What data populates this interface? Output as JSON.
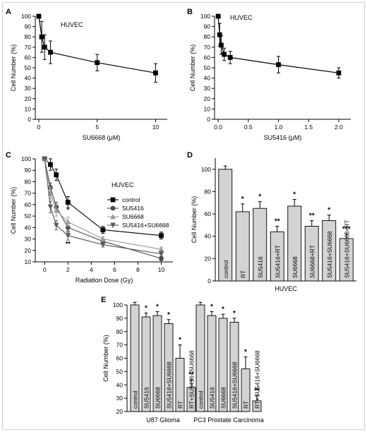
{
  "chart_data": [
    {
      "panel": "A",
      "type": "line",
      "annotation": "HUVEC",
      "xlabel": "SU6668 (μM)",
      "ylabel": "Cell Number (%)",
      "xlim": [
        -0.3,
        11
      ],
      "ylim": [
        0,
        100
      ],
      "xticks": [
        0,
        5,
        10
      ],
      "yticks": [
        0,
        10,
        20,
        30,
        40,
        50,
        60,
        70,
        80,
        90,
        100
      ],
      "x": [
        0,
        0.25,
        0.5,
        1,
        5,
        10
      ],
      "y": [
        100,
        80,
        70,
        65,
        55,
        45
      ],
      "err": [
        0,
        15,
        12,
        11,
        8,
        9
      ]
    },
    {
      "panel": "B",
      "type": "line",
      "annotation": "HUVEC",
      "xlabel": "SU5416 (μM)",
      "ylabel": "Cell Number (%)",
      "xlim": [
        -0.06,
        2.2
      ],
      "ylim": [
        0,
        100
      ],
      "xticks": [
        0,
        0.5,
        1,
        1.5,
        2
      ],
      "xticklabels": [
        "0.0",
        "0.5",
        "1.0",
        "1.5",
        "2.0"
      ],
      "yticks": [
        0,
        10,
        20,
        30,
        40,
        50,
        60,
        70,
        80,
        90,
        100
      ],
      "x": [
        0,
        0.025,
        0.05,
        0.1,
        0.2,
        1,
        2
      ],
      "y": [
        100,
        82,
        72,
        63,
        60,
        53,
        45
      ],
      "err": [
        0,
        11,
        9,
        6,
        6,
        8,
        5
      ]
    },
    {
      "panel": "C",
      "type": "line",
      "annotation": "HUVEC",
      "xlabel": "Radiation Dose (Gy)",
      "ylabel": "Cell Number (%)",
      "xlim": [
        -0.8,
        11
      ],
      "ylim": [
        10,
        100
      ],
      "xticks": [
        0,
        2,
        4,
        6,
        8,
        10
      ],
      "yticks": [
        10,
        20,
        30,
        40,
        50,
        60,
        70,
        80,
        90,
        100
      ],
      "x": [
        0,
        0.5,
        1,
        2,
        5,
        10
      ],
      "series": [
        {
          "name": "control",
          "values": [
            100,
            95,
            86,
            62,
            38,
            33
          ],
          "err": [
            0,
            5,
            5,
            5,
            3,
            3
          ],
          "color": "#000000",
          "marker": "square"
        },
        {
          "name": "SU5416",
          "values": [
            100,
            75,
            58,
            40,
            28,
            13
          ],
          "err": [
            0,
            4,
            4,
            4,
            2,
            2
          ],
          "color": "#4a4a4a",
          "marker": "circle"
        },
        {
          "name": "SU6668",
          "values": [
            100,
            70,
            55,
            45,
            30,
            21
          ],
          "err": [
            0,
            5,
            5,
            4,
            2,
            2
          ],
          "color": "#9a9a9a",
          "marker": "triangle-up"
        },
        {
          "name": "SU5416+SU6668",
          "values": [
            100,
            58,
            42,
            33,
            25,
            17
          ],
          "err": [
            0,
            5,
            4,
            4,
            2,
            2
          ],
          "color": "#5a5a5a",
          "marker": "triangle-down"
        }
      ],
      "annotations": [
        "*",
        "**"
      ]
    },
    {
      "panel": "D",
      "type": "bar",
      "xlabel": "HUVEC",
      "ylabel": "Cell Number (%)",
      "ylim": [
        0,
        110
      ],
      "yticks": [
        0,
        20,
        40,
        60,
        80,
        100
      ],
      "categories": [
        "control",
        "RT",
        "SU5416",
        "SU5416+RT",
        "SU6668",
        "SU6668+RT",
        "SU5416+SU6668",
        "SU5416+SU6668+RT"
      ],
      "values": [
        100,
        62,
        65,
        44,
        67,
        49,
        54,
        38
      ],
      "err": [
        3,
        7,
        6,
        5,
        6,
        5,
        5,
        4
      ],
      "significance": [
        "",
        "*",
        "*",
        "**",
        "*",
        "**",
        "*",
        "***"
      ]
    },
    {
      "panel": "E",
      "type": "bar",
      "ylabel": "Cell Number (%)",
      "ylim": [
        20,
        100
      ],
      "yticks": [
        20,
        30,
        40,
        50,
        60,
        70,
        80,
        90,
        100
      ],
      "groups": [
        {
          "name": "U87 Glioma",
          "categories": [
            "control",
            "SU5416",
            "SU6668",
            "SU5416+SU6668",
            "RT",
            "RT+SU5416+SU6668"
          ],
          "values": [
            100,
            91,
            92,
            86,
            60,
            38
          ],
          "err": [
            2,
            3,
            3,
            3,
            10,
            6
          ],
          "significance": [
            "",
            "*",
            "*",
            "*",
            "*",
            "**"
          ]
        },
        {
          "name": "PC3 Prostate Carcinoma",
          "categories": [
            "control",
            "SU5416",
            "SU6668",
            "SU5416+SU6668",
            "RT",
            "RT+SU5416+SU6668"
          ],
          "values": [
            100,
            92,
            90,
            87,
            52,
            28
          ],
          "err": [
            2,
            3,
            3,
            3,
            9,
            4
          ],
          "significance": [
            "",
            "*",
            "*",
            "*",
            "*",
            "**"
          ]
        }
      ]
    }
  ]
}
